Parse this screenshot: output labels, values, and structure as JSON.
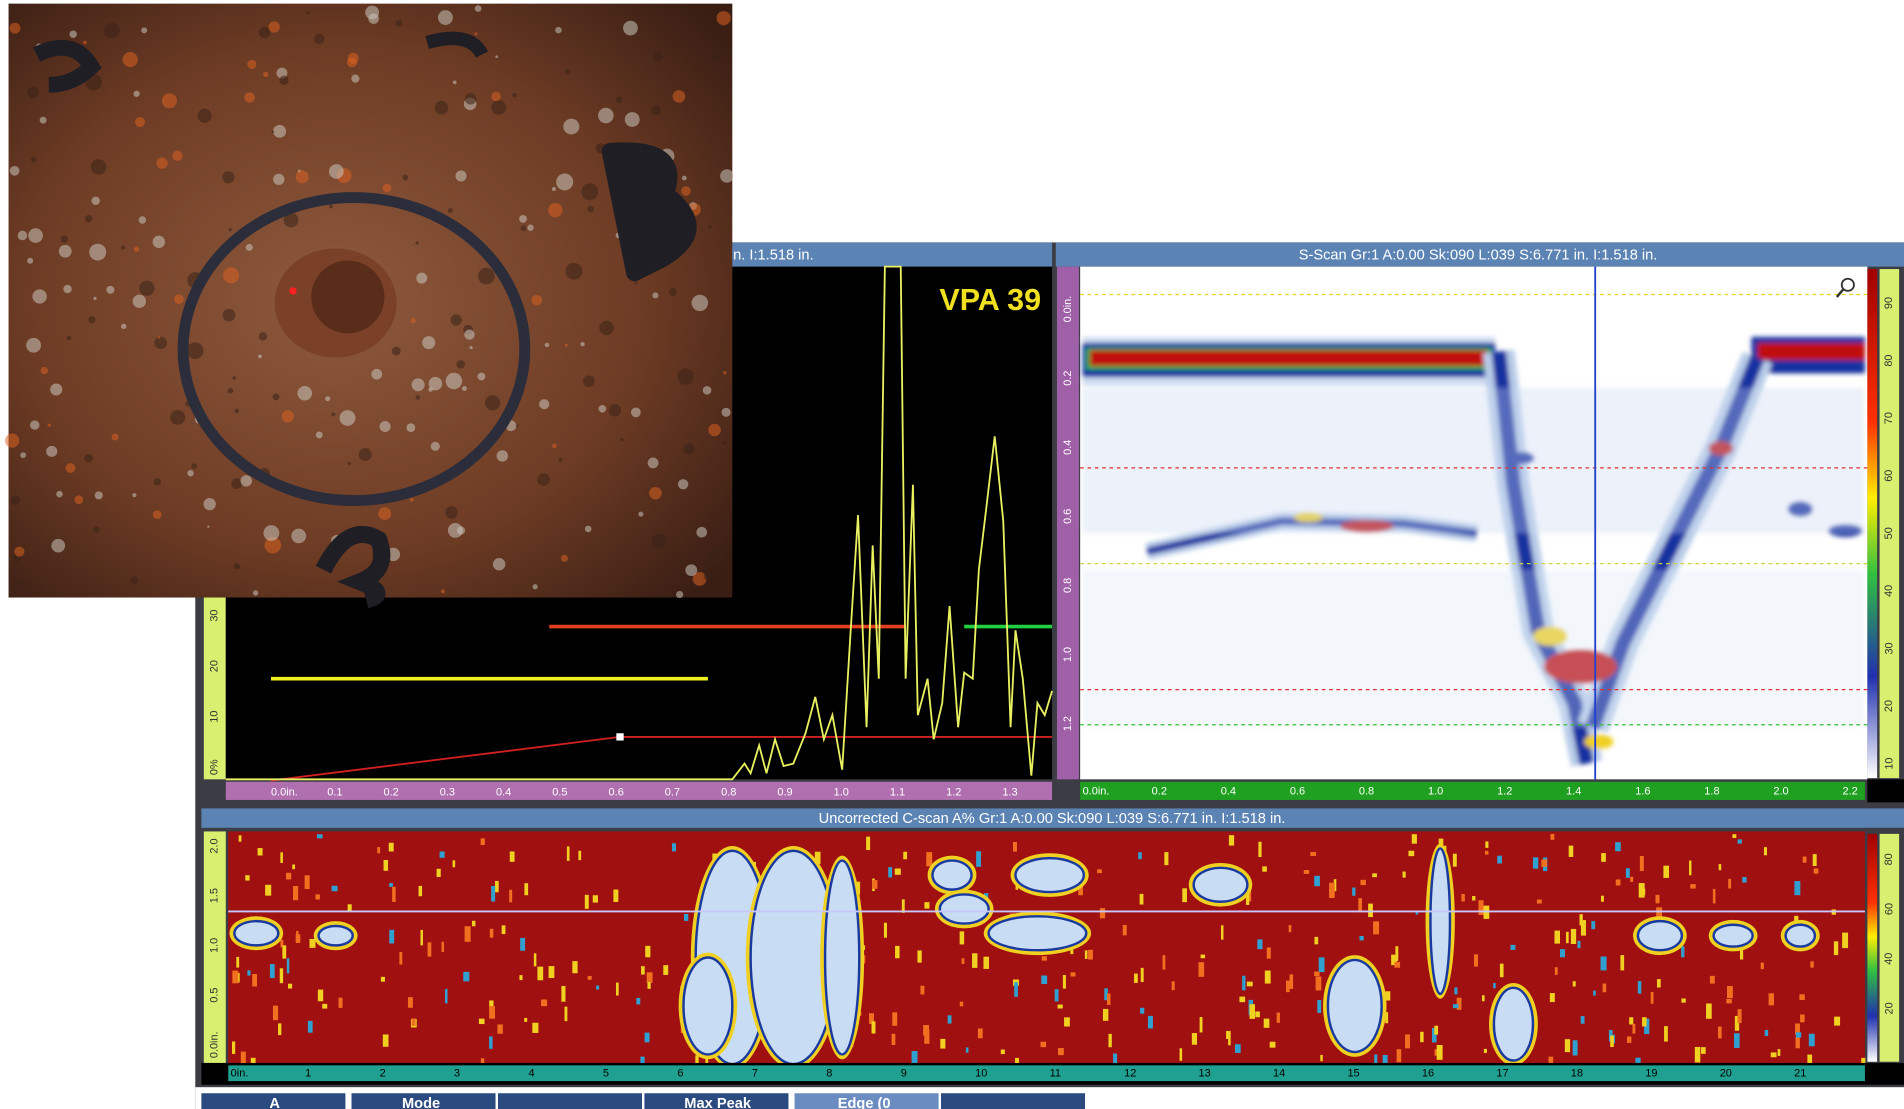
{
  "a_scan": {
    "header": "in. I:1.518 in.",
    "label": "VPA 39",
    "x_ticks": [
      "0.0in.",
      "0.1",
      "0.2",
      "0.3",
      "0.4",
      "0.5",
      "0.6",
      "0.7",
      "0.8",
      "0.9",
      "1.0",
      "1.1",
      "1.2",
      "1.3"
    ],
    "y_ticks": [
      "0%",
      "10",
      "20",
      "30"
    ]
  },
  "s_scan": {
    "header": "S-Scan Gr:1 A:0.00 Sk:090 L:039 S:6.771 in. I:1.518 in.",
    "depth_ticks": [
      "0.0in.",
      "0.2",
      "0.4",
      "0.6",
      "0.8",
      "1.0",
      "1.2"
    ],
    "x_ticks": [
      "0.0in.",
      "0.2",
      "0.4",
      "0.6",
      "0.8",
      "1.0",
      "1.2",
      "1.4",
      "1.6",
      "1.8",
      "2.0",
      "2.2"
    ],
    "color_ticks": [
      "10",
      "20",
      "30",
      "40",
      "50",
      "60",
      "70",
      "80",
      "90"
    ]
  },
  "c_scan": {
    "header": "Uncorrected C-scan A% Gr:1 A:0.00 Sk:090 L:039 S:6.771 in. I:1.518 in.",
    "y_ticks": [
      "0.0in.",
      "0.5",
      "1.0",
      "1.5",
      "2.0"
    ],
    "x_ticks": [
      "0in.",
      "1",
      "2",
      "3",
      "4",
      "5",
      "6",
      "7",
      "8",
      "9",
      "10",
      "11",
      "12",
      "13",
      "14",
      "15",
      "16",
      "17",
      "18",
      "19",
      "20",
      "21"
    ],
    "color_ticks": [
      "20",
      "40",
      "60",
      "80"
    ]
  },
  "toolbar": {
    "buttons": [
      "A",
      "Mode",
      "Max Peak",
      "Edge (0"
    ]
  }
}
